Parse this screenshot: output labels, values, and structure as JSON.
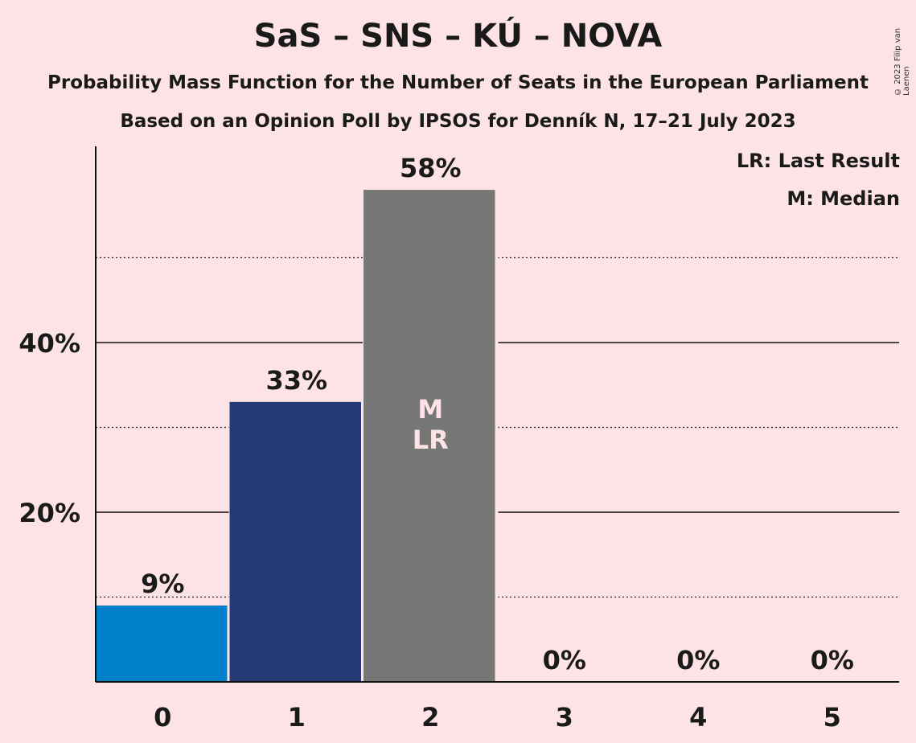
{
  "title": "SaS – SNS – KÚ – NOVA",
  "subtitle": "Probability Mass Function for the Number of Seats in the European Parliament",
  "subtitle2": "Based on an Opinion Poll by IPSOS for Denník N, 17–21 July 2023",
  "copyright": "© 2023 Filip van Laenen",
  "legend": {
    "last_result": "LR: Last Result",
    "median": "M: Median"
  },
  "colors": {
    "background": "#fde3e5",
    "bar_0": "#0080c8",
    "bar_1": "#233a76",
    "bar_2": "#777777",
    "marker_text": "#fde3e5"
  },
  "chart_data": {
    "type": "bar",
    "categories": [
      "0",
      "1",
      "2",
      "3",
      "4",
      "5"
    ],
    "values": [
      9,
      33,
      58,
      0,
      0,
      0
    ],
    "value_labels": [
      "9%",
      "33%",
      "58%",
      "0%",
      "0%",
      "0%"
    ],
    "ylim": [
      0,
      63
    ],
    "yticks": [
      20,
      40
    ],
    "ytick_labels": [
      "20%",
      "40%"
    ],
    "dotted_gridlines": [
      10,
      30,
      50
    ],
    "median_index": 2,
    "last_result_index": 2,
    "median_label": "M",
    "last_result_label": "LR",
    "grid": true,
    "legend_placement": "top-right"
  }
}
